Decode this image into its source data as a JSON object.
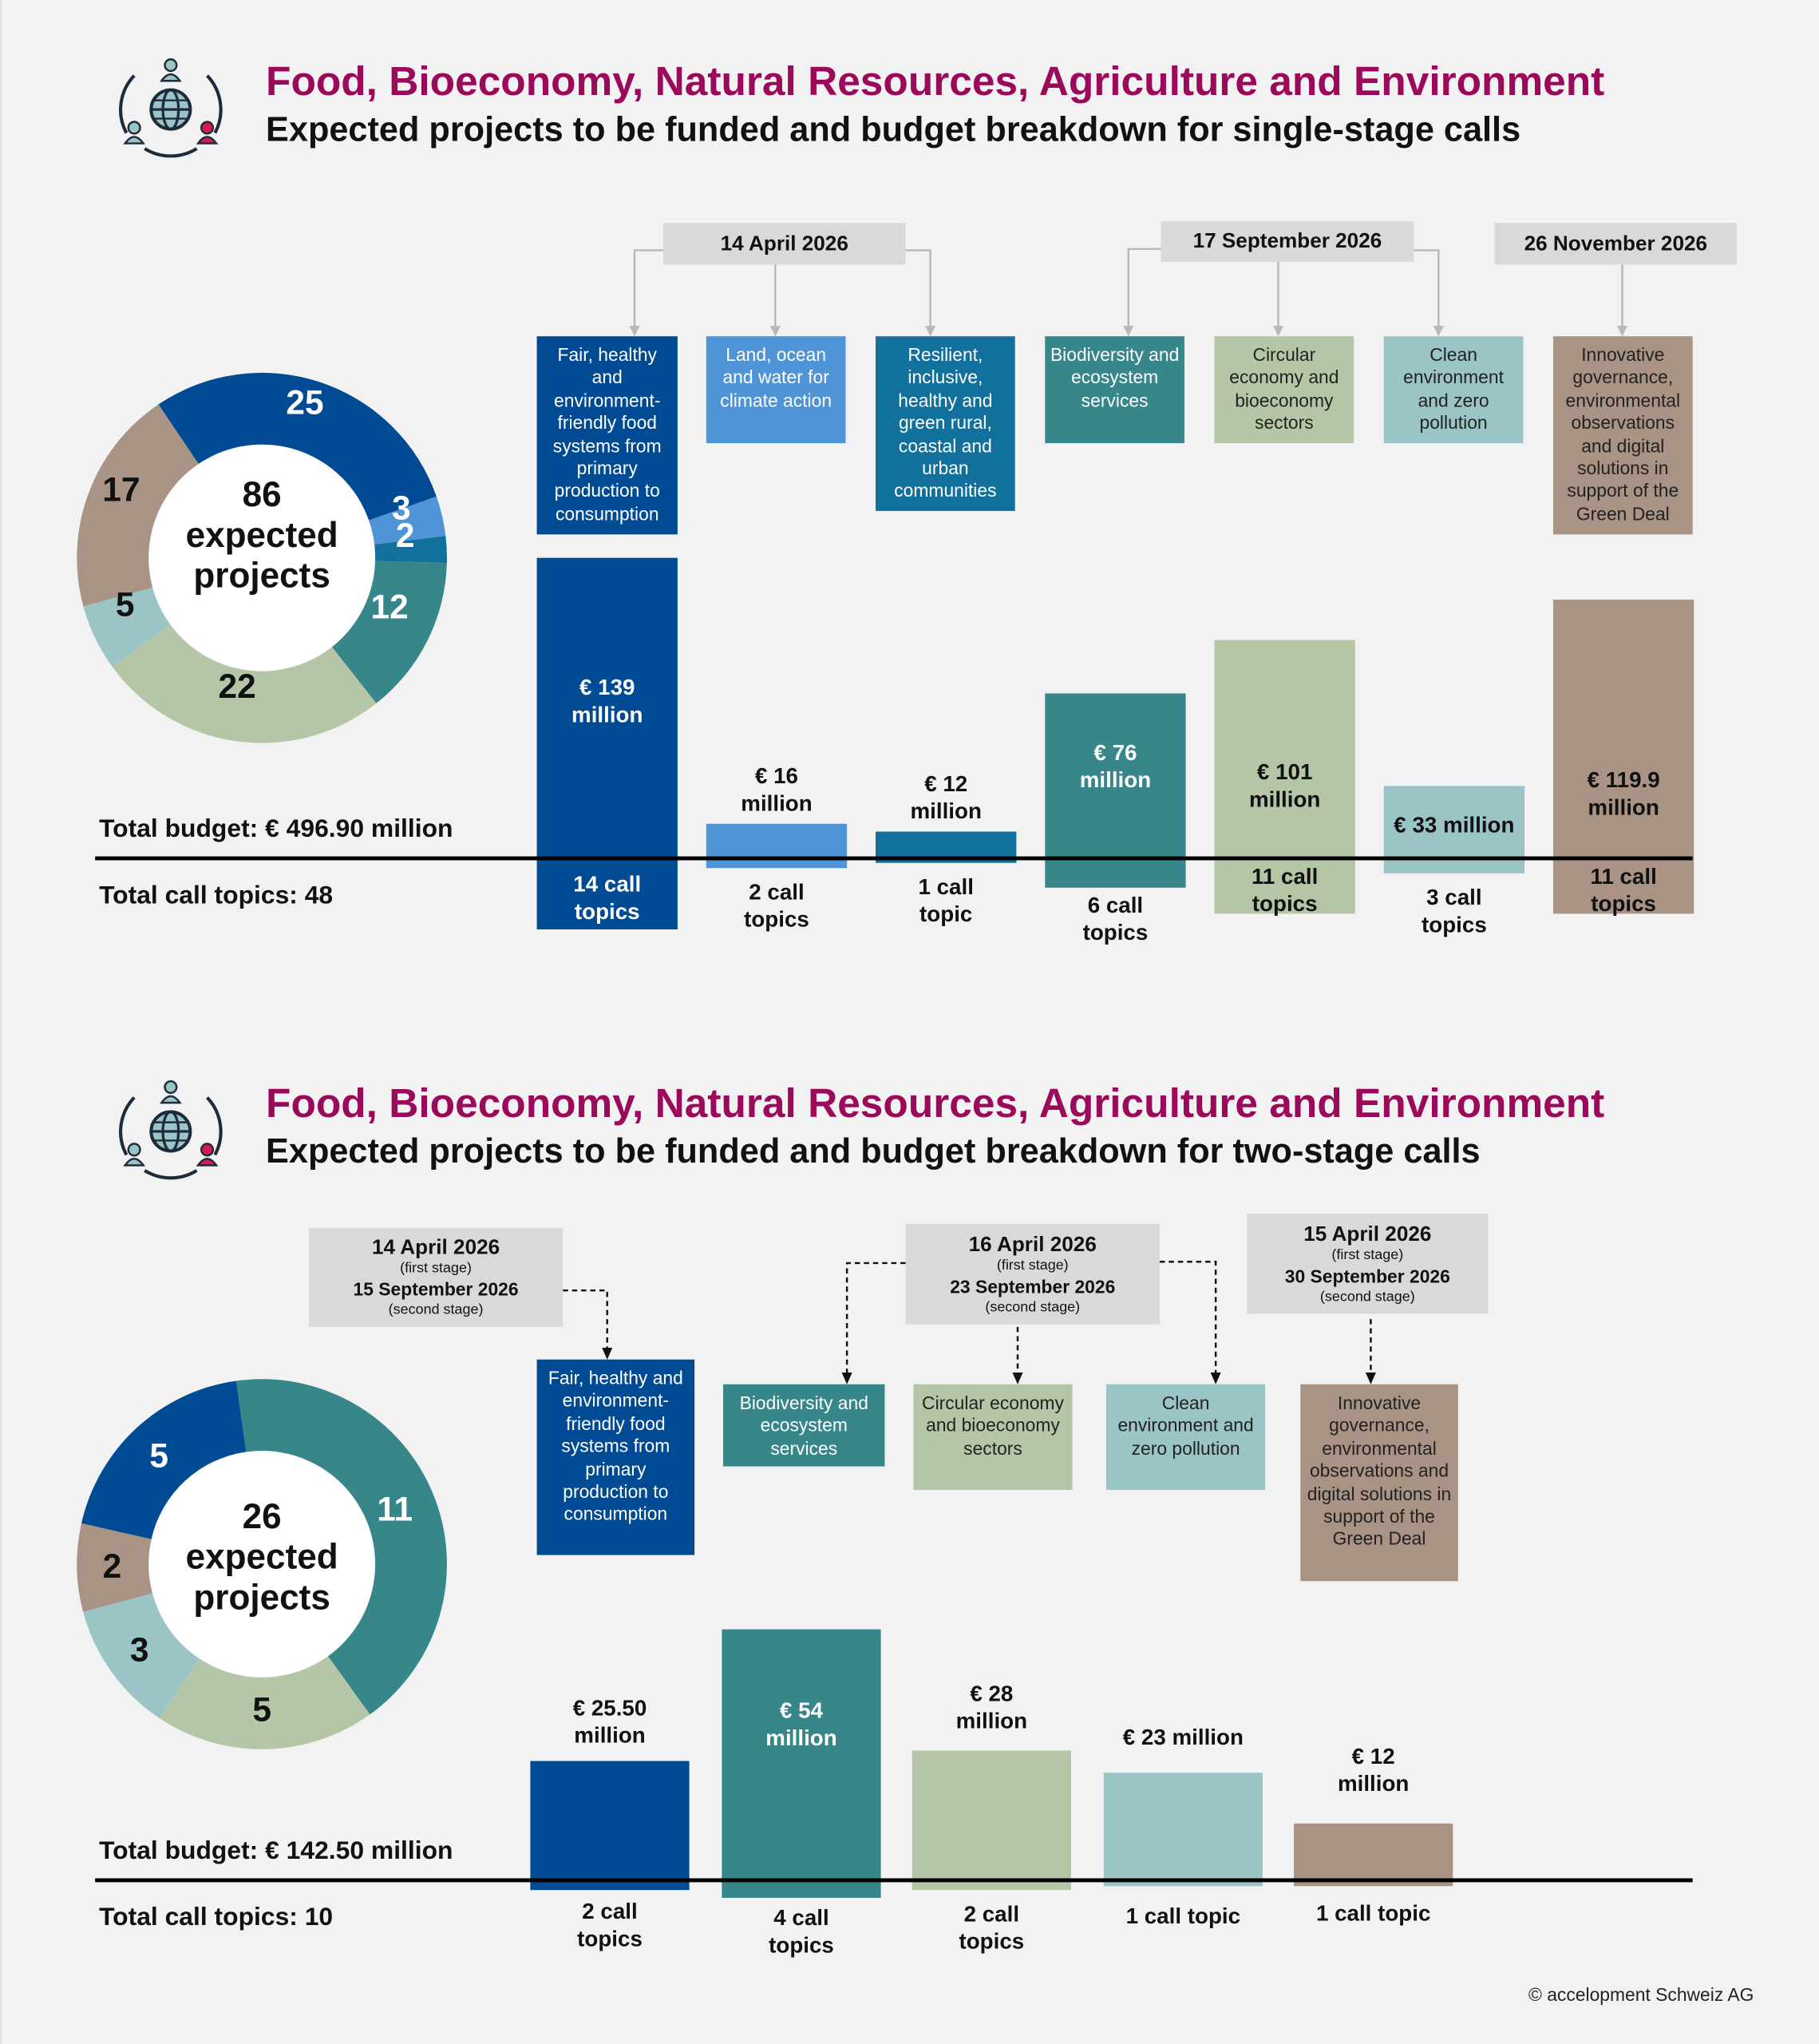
{
  "sections": [
    {
      "title": "Food, Bioeconomy, Natural Resources, Agriculture and Environment",
      "subtitle": "Expected projects to be funded and budget breakdown for single-stage calls",
      "donut_center": {
        "number": "86",
        "line1": "expected",
        "line2": "projects"
      },
      "total_budget": "Total budget: € 496.90 million",
      "total_topics": "Total call topics: 48",
      "deadlines": [
        {
          "date": "14 April 2026"
        },
        {
          "date": "17 September 2026"
        },
        {
          "date": "26 November 2026"
        }
      ]
    },
    {
      "title": "Food, Bioeconomy, Natural Resources, Agriculture and Environment",
      "subtitle": "Expected projects to be funded and budget breakdown for two-stage calls",
      "donut_center": {
        "number": "26",
        "line1": "expected",
        "line2": "projects"
      },
      "total_budget": "Total budget: € 142.50 million",
      "total_topics": "Total call topics: 10",
      "deadlines": [
        {
          "date": "14 April 2026",
          "stage1": "(first stage)",
          "date2": "15 September 2026",
          "stage2": "(second stage)"
        },
        {
          "date": "16 April 2026",
          "stage1": "(first stage)",
          "date2": "23 September 2026",
          "stage2": "(second stage)"
        },
        {
          "date": "15 April 2026",
          "stage1": "(first stage)",
          "date2": "30 September 2026",
          "stage2": "(second stage)"
        }
      ]
    }
  ],
  "colors": {
    "title": "#9b0a5a",
    "dark_blue": "#004b93",
    "light_blue": "#4f94d6",
    "teal_blue": "#11709c",
    "teal": "#36868a",
    "sage": "#b4c6a6",
    "light_teal": "#9bc4c6",
    "taupe": "#a99384",
    "date_box": "#d9d9d9"
  },
  "chart_data": [
    {
      "type": "pie",
      "donut": true,
      "values": [
        25,
        3,
        2,
        12,
        22,
        5,
        17
      ],
      "colors": [
        "#004b93",
        "#4f94d6",
        "#11709c",
        "#36868a",
        "#b4c6a6",
        "#9bc4c6",
        "#a99384"
      ]
    },
    {
      "type": "bar",
      "categories": [
        "Fair, healthy and environment-friendly food systems from primary production to consumption",
        "Land, ocean and water for climate action",
        "Resilient, inclusive, healthy and green rural, coastal and urban communities",
        "Biodiversity and ecosystem services",
        "Circular economy and bioeconomy sectors",
        "Clean environment and zero pollution",
        "Innovative governance, environmental observations and digital solutions in support of the Green Deal"
      ],
      "deadline_of_category": [
        "14 April 2026",
        "14 April 2026",
        "14 April 2026",
        "17 September 2026",
        "17 September 2026",
        "17 September 2026",
        "26 November 2026"
      ],
      "budget_million_eur": [
        139,
        16,
        12,
        76,
        101,
        33,
        119.9
      ],
      "budget_labels": [
        "€ 139 million",
        "€ 16 million",
        "€ 12 million",
        "€ 76 million",
        "€ 101 million",
        "€ 33 million",
        "€ 119.9 million"
      ],
      "call_topics": [
        14,
        2,
        1,
        6,
        11,
        3,
        11
      ],
      "call_topic_labels": [
        "14 call topics",
        "2 call topics",
        "1 call topic",
        "6 call topics",
        "11 call topics",
        "3 call topics",
        "11 call topics"
      ],
      "colors": [
        "#004b93",
        "#4f94d6",
        "#11709c",
        "#36868a",
        "#b4c6a6",
        "#9bc4c6",
        "#a99384"
      ]
    },
    {
      "type": "pie",
      "donut": true,
      "values": [
        11,
        5,
        3,
        2,
        5
      ],
      "colors": [
        "#36868a",
        "#b4c6a6",
        "#9bc4c6",
        "#a99384",
        "#004b93"
      ]
    },
    {
      "type": "bar",
      "categories": [
        "Fair, healthy and environment-friendly food systems from primary production to consumption",
        "Biodiversity and ecosystem services",
        "Circular economy and bioeconomy sectors",
        "Clean environment and zero pollution",
        "Innovative governance, environmental observations and digital solutions in support of the Green Deal"
      ],
      "budget_million_eur": [
        25.5,
        54,
        28,
        23,
        12
      ],
      "budget_labels": [
        "€ 25.50 million",
        "€ 54 million",
        "€ 28 million",
        "€ 23 million",
        "€ 12 million"
      ],
      "call_topics": [
        2,
        4,
        2,
        1,
        1
      ],
      "call_topic_labels": [
        "2 call topics",
        "4 call topics",
        "2 call topics",
        "1 call topic",
        "1 call topic"
      ],
      "colors": [
        "#004b93",
        "#36868a",
        "#b4c6a6",
        "#9bc4c6",
        "#a99384"
      ]
    }
  ],
  "footer": {
    "copyright": "© accelopment Schweiz AG"
  }
}
